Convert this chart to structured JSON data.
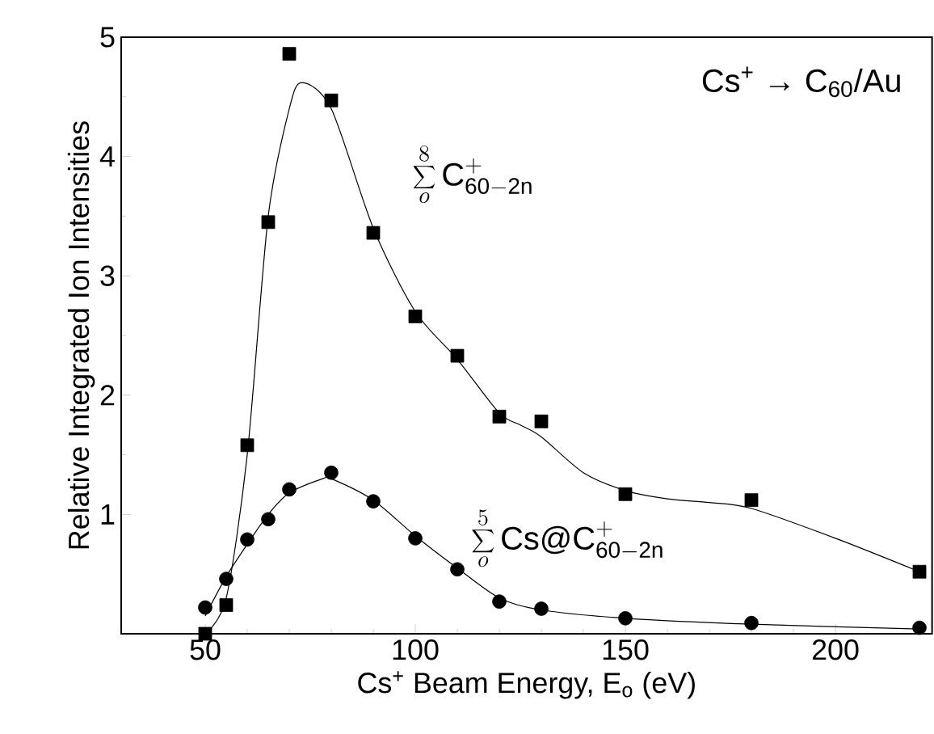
{
  "chart_data": {
    "type": "scatter",
    "xlabel": "Cs$^{+}$ Beam Energy, E$_{o}$ (eV)",
    "ylabel": "Relative Integrated  Ion Intensities",
    "annotations": [
      "Cs$^{+}$ → C$_{60}$/Au"
    ],
    "xlim": [
      30,
      223
    ],
    "xticks": [
      50,
      100,
      150,
      200
    ],
    "ylim": [
      0,
      5
    ],
    "yticks": [
      1,
      2,
      3,
      4,
      5
    ],
    "series": [
      {
        "name": "\\sum_{o}^{8}\\mathrm{C}^{+}_{\\mathrm{60{-}2n}}",
        "marker": "square",
        "color": "#000000",
        "x": [
          50,
          55,
          60,
          65,
          70,
          80,
          90,
          100,
          110,
          120,
          130,
          150,
          180,
          220
        ],
        "values": [
          0.0,
          0.24,
          1.58,
          3.45,
          4.86,
          4.47,
          3.36,
          2.66,
          2.33,
          1.82,
          1.78,
          1.17,
          1.12,
          0.52
        ]
      },
      {
        "name": "\\sum_{o}^{5}\\mathrm{Cs@C}^{+}_{\\mathrm{60{-}2n}}",
        "marker": "circle",
        "color": "#000000",
        "x": [
          50,
          55,
          60,
          65,
          70,
          80,
          90,
          100,
          110,
          120,
          130,
          150,
          180,
          220
        ],
        "values": [
          0.22,
          0.46,
          0.79,
          0.96,
          1.21,
          1.35,
          1.11,
          0.8,
          0.54,
          0.27,
          0.21,
          0.13,
          0.09,
          0.05
        ]
      },
      {
        "type": "line",
        "marker": "none",
        "line_style": "solid",
        "color": "#000000",
        "x": [
          50,
          55,
          60,
          65,
          70,
          73,
          80,
          90,
          100,
          110,
          120,
          125,
          130,
          140,
          150,
          160,
          170,
          180,
          200,
          220
        ],
        "values": [
          0.0,
          0.3,
          1.5,
          3.5,
          4.4,
          4.62,
          4.4,
          3.4,
          2.7,
          2.3,
          1.85,
          1.75,
          1.65,
          1.35,
          1.2,
          1.13,
          1.1,
          1.05,
          0.8,
          0.52
        ]
      },
      {
        "type": "line",
        "marker": "none",
        "line_style": "solid",
        "color": "#000000",
        "x": [
          50,
          55,
          60,
          65,
          70,
          78,
          80,
          90,
          100,
          110,
          120,
          130,
          150,
          180,
          220
        ],
        "values": [
          0.15,
          0.48,
          0.75,
          1.0,
          1.18,
          1.3,
          1.3,
          1.12,
          0.82,
          0.55,
          0.3,
          0.2,
          0.13,
          0.08,
          0.04
        ]
      }
    ]
  }
}
